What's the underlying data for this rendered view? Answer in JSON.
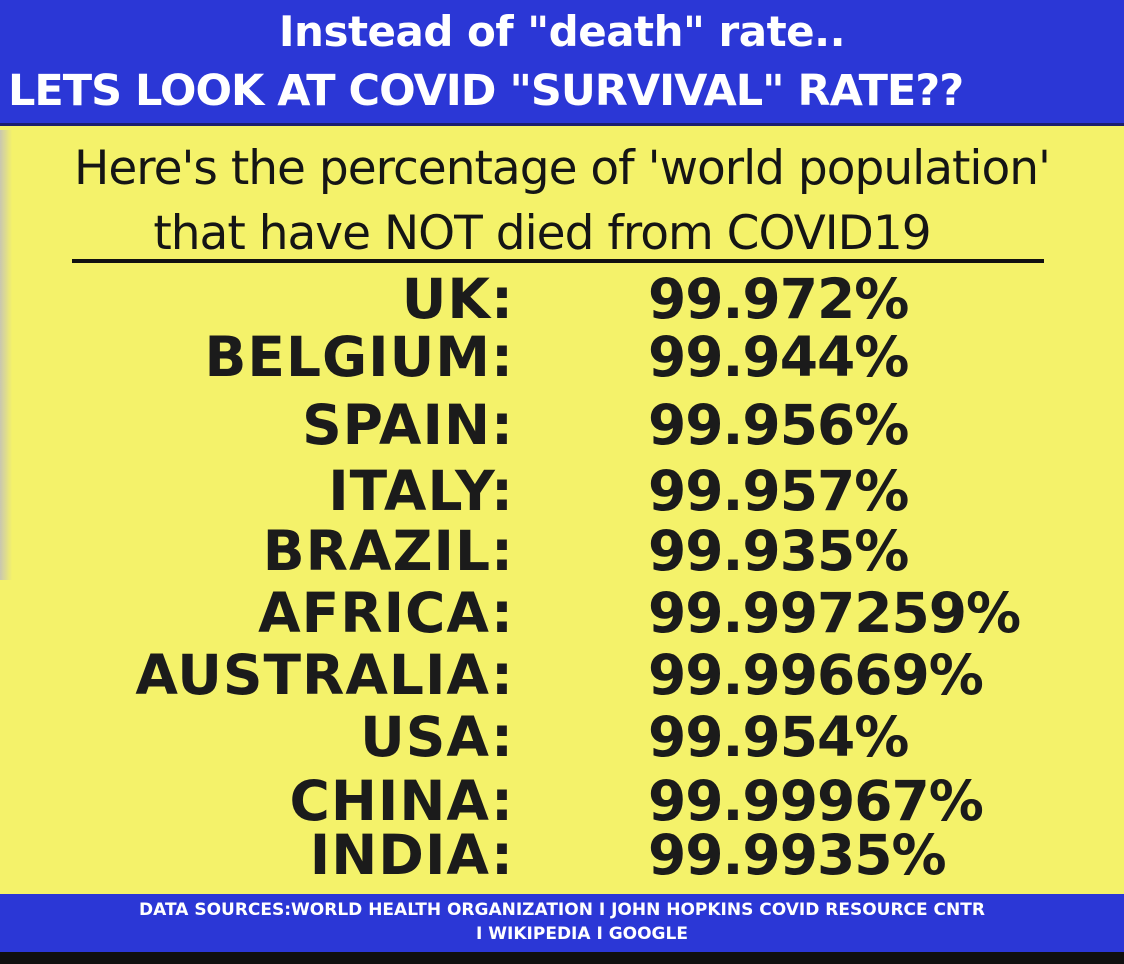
{
  "header": {
    "line1": "Instead of \"death\" rate..",
    "line2": "LETS LOOK AT COVID \"SURVIVAL\" RATE??"
  },
  "subtitle": {
    "line1": "Here's the percentage of 'world population'",
    "line2": "that have NOT died from COVID19"
  },
  "rows": [
    {
      "country": "UK:",
      "value": "99.972%"
    },
    {
      "country": "BELGIUM:",
      "value": "99.944%"
    },
    {
      "country": "SPAIN:",
      "value": "99.956%"
    },
    {
      "country": "ITALY:",
      "value": "99.957%"
    },
    {
      "country": "BRAZIL:",
      "value": "99.935%"
    },
    {
      "country": "AFRICA:",
      "value": "99.997259%"
    },
    {
      "country": "AUSTRALIA:",
      "value": "99.99669%"
    },
    {
      "country": "USA:",
      "value": "99.954%"
    },
    {
      "country": "CHINA:",
      "value": "99.99967%"
    },
    {
      "country": "INDIA:",
      "value": "99.9935%"
    }
  ],
  "footer": {
    "line1": "DATA SOURCES:WORLD HEALTH ORGANIZATION I JOHN HOPKINS COVID RESOURCE CNTR",
    "line2": "I WIKIPEDIA I GOOGLE"
  },
  "colors": {
    "header_bg": "#2b37d6",
    "panel_bg": "#f4f26a",
    "text": "#1b1b1b"
  }
}
